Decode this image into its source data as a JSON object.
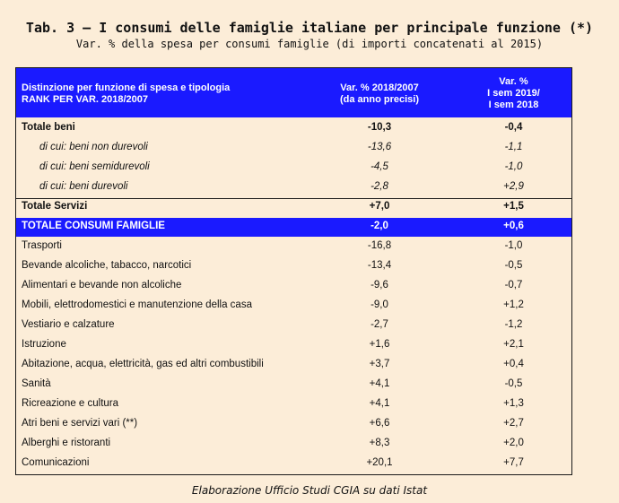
{
  "title": "Tab. 3 – I consumi delle famiglie italiane per principale funzione (*)",
  "subtitle": "Var. % della spesa per consumi famiglie (di importi concatenati al 2015)",
  "header": {
    "col1_line1": "Distinzione per funzione di spesa e tipologia",
    "col1_line2": "RANK PER VAR. 2018/2007",
    "col2_line1": "Var. % 2018/2007",
    "col2_line2": "(da anno precisi)",
    "col3_line1": "Var. %",
    "col3_line2": "I sem 2019/",
    "col3_line3": "I sem 2018"
  },
  "rows": [
    {
      "label": "Totale beni",
      "v1": "-10,3",
      "v2": "-0,4",
      "style": "bold"
    },
    {
      "label": "di cui: beni non durevoli",
      "v1": "-13,6",
      "v2": "-1,1",
      "style": "ital"
    },
    {
      "label": "di cui: beni semidurevoli",
      "v1": "-4,5",
      "v2": "-1,0",
      "style": "ital"
    },
    {
      "label": "di cui: beni durevoli",
      "v1": "-2,8",
      "v2": "+2,9",
      "style": "ital"
    },
    {
      "label": "Totale Servizi",
      "v1": "+7,0",
      "v2": "+1,5",
      "style": "bold"
    },
    {
      "label": "TOTALE CONSUMI FAMIGLIE",
      "v1": "-2,0",
      "v2": "+0,6",
      "style": "total"
    },
    {
      "label": "Trasporti",
      "v1": "-16,8",
      "v2": "-1,0",
      "style": "plain"
    },
    {
      "label": "Bevande alcoliche, tabacco, narcotici",
      "v1": "-13,4",
      "v2": "-0,5",
      "style": "plain"
    },
    {
      "label": "Alimentari e bevande non alcoliche",
      "v1": "-9,6",
      "v2": "-0,7",
      "style": "plain"
    },
    {
      "label": "Mobili, elettrodomestici e manutenzione della casa",
      "v1": "-9,0",
      "v2": "+1,2",
      "style": "plain"
    },
    {
      "label": "Vestiario e calzature",
      "v1": "-2,7",
      "v2": "-1,2",
      "style": "plain"
    },
    {
      "label": "Istruzione",
      "v1": "+1,6",
      "v2": "+2,1",
      "style": "plain"
    },
    {
      "label": "Abitazione, acqua, elettricità, gas ed altri combustibili",
      "v1": "+3,7",
      "v2": "+0,4",
      "style": "plain"
    },
    {
      "label": "Sanità",
      "v1": "+4,1",
      "v2": "-0,5",
      "style": "plain"
    },
    {
      "label": "Ricreazione e cultura",
      "v1": "+4,1",
      "v2": "+1,3",
      "style": "plain"
    },
    {
      "label": "Atri beni e servizi vari (**)",
      "v1": "+6,6",
      "v2": "+2,7",
      "style": "plain"
    },
    {
      "label": "Alberghi e ristoranti",
      "v1": "+8,3",
      "v2": "+2,0",
      "style": "plain"
    },
    {
      "label": "Comunicazioni",
      "v1": "+20,1",
      "v2": "+7,7",
      "style": "plain"
    }
  ],
  "footer": "Elaborazione Ufficio Studi CGIA su dati Istat"
}
